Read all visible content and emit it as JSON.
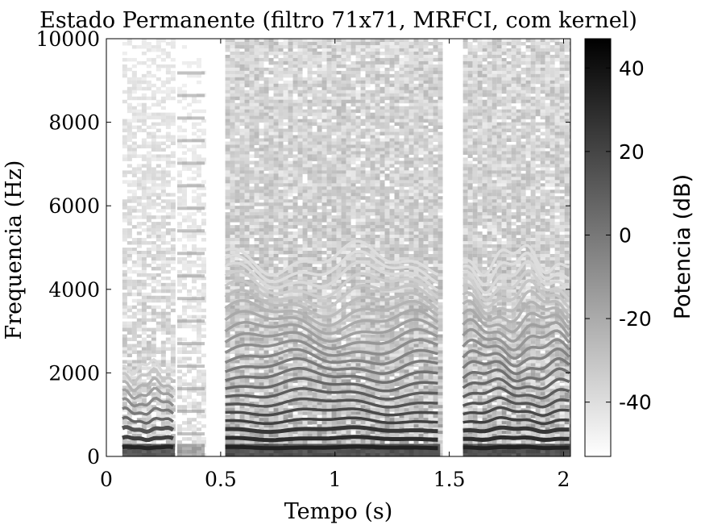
{
  "chart_data": {
    "type": "heatmap",
    "title": "Estado Permanente (filtro 71x71, MRFCI, com kernel)",
    "xlabel": "Tempo (s)",
    "ylabel": "Frequencia (Hz)",
    "xlim": [
      0,
      2.03
    ],
    "ylim": [
      0,
      10000
    ],
    "x_ticks": [
      {
        "value": 0,
        "label": "0"
      },
      {
        "value": 0.5,
        "label": "0.5"
      },
      {
        "value": 1,
        "label": "1"
      },
      {
        "value": 1.5,
        "label": "1.5"
      },
      {
        "value": 2,
        "label": "2"
      }
    ],
    "y_ticks": [
      {
        "value": 0,
        "label": "0"
      },
      {
        "value": 2000,
        "label": "2000"
      },
      {
        "value": 4000,
        "label": "4000"
      },
      {
        "value": 6000,
        "label": "6000"
      },
      {
        "value": 8000,
        "label": "8000"
      },
      {
        "value": 10000,
        "label": "10000"
      }
    ],
    "colorbar": {
      "label": "Potencia (dB)",
      "range": [
        -53,
        47
      ],
      "ticks": [
        {
          "value": 40,
          "label": "40"
        },
        {
          "value": 20,
          "label": "20"
        },
        {
          "value": 0,
          "label": "0"
        },
        {
          "value": -20,
          "label": "-20"
        },
        {
          "value": -40,
          "label": "-40"
        }
      ],
      "colormap": "gray-reversed"
    },
    "colors": {
      "low": "#ffffff",
      "high": "#000000"
    },
    "grid": false,
    "segments": [
      {
        "t_start": 0.07,
        "t_end": 0.3,
        "level": "medium"
      },
      {
        "t_start": 0.31,
        "t_end": 0.43,
        "level": "low"
      },
      {
        "t_start": 0.52,
        "t_end": 1.46,
        "level": "high"
      },
      {
        "t_start": 1.56,
        "t_end": 2.03,
        "level": "high"
      }
    ]
  }
}
